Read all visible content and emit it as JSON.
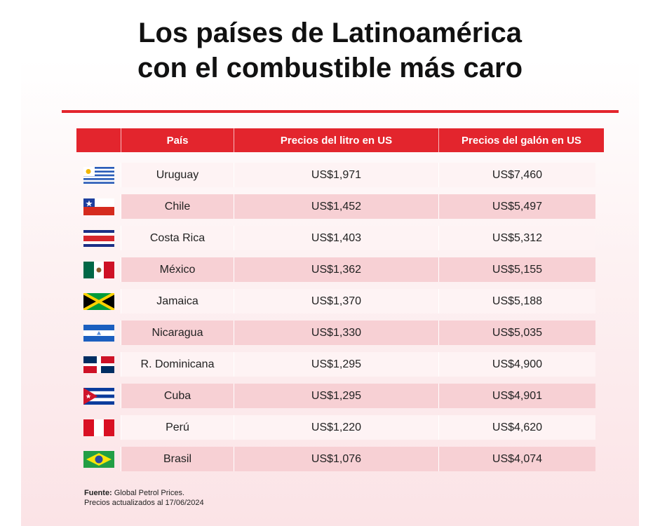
{
  "header": {
    "title_line1": "Los países de Latinoamérica",
    "title_line2": "con el combustible más caro"
  },
  "chart_data": {
    "type": "table",
    "columns": [
      "",
      "País",
      "Precios del litro en US",
      "Precios del galón en US"
    ],
    "rows": [
      {
        "flag": "uruguay-flag-icon",
        "country": "Uruguay",
        "liter": "US$1,971",
        "gallon": "US$7,460"
      },
      {
        "flag": "chile-flag-icon",
        "country": "Chile",
        "liter": "US$1,452",
        "gallon": "US$5,497"
      },
      {
        "flag": "costa-rica-flag-icon",
        "country": "Costa Rica",
        "liter": "US$1,403",
        "gallon": "US$5,312"
      },
      {
        "flag": "mexico-flag-icon",
        "country": "México",
        "liter": "US$1,362",
        "gallon": "US$5,155"
      },
      {
        "flag": "jamaica-flag-icon",
        "country": "Jamaica",
        "liter": "US$1,370",
        "gallon": "US$5,188"
      },
      {
        "flag": "nicaragua-flag-icon",
        "country": "Nicaragua",
        "liter": "US$1,330",
        "gallon": "US$5,035"
      },
      {
        "flag": "dominican-republic-flag-icon",
        "country": "R. Dominicana",
        "liter": "US$1,295",
        "gallon": "US$4,900"
      },
      {
        "flag": "cuba-flag-icon",
        "country": "Cuba",
        "liter": "US$1,295",
        "gallon": "US$4,901"
      },
      {
        "flag": "peru-flag-icon",
        "country": "Perú",
        "liter": "US$1,220",
        "gallon": "US$4,620"
      },
      {
        "flag": "brazil-flag-icon",
        "country": "Brasil",
        "liter": "US$1,076",
        "gallon": "US$4,074"
      }
    ]
  },
  "footer": {
    "source_label": "Fuente:",
    "source_value": " Global Petrol Prices.",
    "updated": "Precios actualizados al 17/06/2024"
  },
  "colors": {
    "accent": "#e3252d",
    "row_light": "#fef3f4",
    "row_dark": "#f7d0d4"
  }
}
